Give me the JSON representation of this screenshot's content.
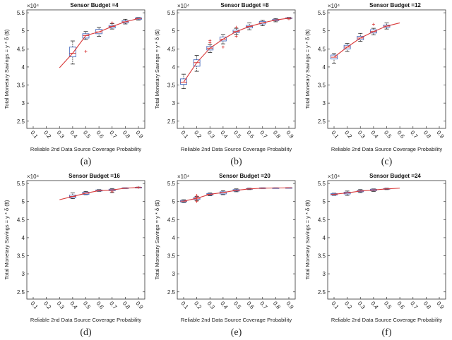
{
  "figure": {
    "colors": {
      "box": "#4a6fc0",
      "median_line": "#d93a3a",
      "whisker": "#222222",
      "outlier": "#d93a3a"
    }
  },
  "chart_data": [
    {
      "type": "box",
      "caption": "(a)",
      "title": "Sensor Budget =4",
      "xlabel": "Reliable 2nd Data Source Coverage Probability",
      "ylabel": "Total Monetary Savings = y * δ ($)",
      "y_multiplier": "×10⁴",
      "categories": [
        "0.1",
        "0.2",
        "0.3",
        "0.4",
        "0.5",
        "0.6",
        "0.7",
        "0.8",
        "0.9"
      ],
      "yticks": [
        "2.5",
        "3",
        "3.5",
        "4",
        "4.5",
        "5",
        "5.5"
      ],
      "ylim": [
        2.3,
        5.58
      ],
      "grid": false,
      "median": [
        null,
        null,
        3.98,
        4.38,
        4.87,
        4.97,
        5.12,
        5.25,
        5.34
      ],
      "q1": [
        null,
        null,
        null,
        4.28,
        4.8,
        4.92,
        5.08,
        5.22,
        5.32
      ],
      "q3": [
        null,
        null,
        null,
        4.55,
        4.92,
        5.04,
        5.15,
        5.28,
        5.36
      ],
      "whisker_low": [
        null,
        null,
        null,
        4.08,
        4.76,
        4.85,
        5.05,
        5.19,
        5.3
      ],
      "whisker_high": [
        null,
        null,
        null,
        4.72,
        4.98,
        5.1,
        5.2,
        5.32,
        5.37
      ],
      "outliers": [
        [],
        [],
        [],
        [],
        [
          4.43
        ],
        [],
        [
          5.22
        ],
        [],
        []
      ]
    },
    {
      "type": "box",
      "caption": "(b)",
      "title": "Sensor Budget =8",
      "xlabel": "Reliable 2nd Data Source Coverage Probability",
      "ylabel": "Total Monetary Savings = y * δ ($)",
      "y_multiplier": "×10⁴",
      "categories": [
        "0.1",
        "0.2",
        "0.3",
        "0.4",
        "0.5",
        "0.6",
        "0.7",
        "0.8",
        "0.9"
      ],
      "yticks": [
        "2.5",
        "3",
        "3.5",
        "4",
        "4.5",
        "5",
        "5.5"
      ],
      "ylim": [
        2.3,
        5.58
      ],
      "grid": false,
      "median": [
        3.58,
        4.12,
        4.52,
        4.77,
        4.98,
        5.12,
        5.22,
        5.3,
        5.35
      ],
      "q1": [
        3.52,
        4.02,
        4.47,
        4.72,
        4.95,
        5.08,
        5.19,
        5.28,
        5.34
      ],
      "q3": [
        3.67,
        4.2,
        4.57,
        4.83,
        5.02,
        5.15,
        5.26,
        5.32,
        5.36
      ],
      "whisker_low": [
        3.4,
        3.88,
        4.4,
        4.64,
        4.9,
        5.03,
        5.14,
        5.25,
        5.33
      ],
      "whisker_high": [
        3.8,
        4.32,
        4.62,
        4.9,
        5.07,
        5.22,
        5.29,
        5.34,
        5.37
      ],
      "outliers": [
        [],
        [],
        [
          4.67,
          4.73
        ],
        [
          4.55
        ],
        [
          4.85,
          5.1
        ],
        [],
        [],
        [],
        [
          5.33
        ]
      ]
    },
    {
      "type": "box",
      "caption": "(c)",
      "title": "Sensor Budget =12",
      "xlabel": "Reliable 2nd Data Source Coverage Probability",
      "ylabel": "Total Monetary Savings = y * δ ($)",
      "y_multiplier": "×10⁴",
      "categories": [
        "0.1",
        "0.2",
        "0.3",
        "0.4",
        "0.5",
        "0.6",
        "0.7",
        "0.8",
        "0.9"
      ],
      "yticks": [
        "2.5",
        "3",
        "3.5",
        "4",
        "4.5",
        "5",
        "5.5"
      ],
      "ylim": [
        2.3,
        5.58
      ],
      "grid": false,
      "median": [
        4.27,
        4.55,
        4.8,
        4.98,
        5.13,
        5.22,
        null,
        null,
        null
      ],
      "q1": [
        4.22,
        4.5,
        4.75,
        4.94,
        5.1,
        null,
        null,
        null,
        null
      ],
      "q3": [
        4.33,
        4.6,
        4.85,
        5.03,
        5.16,
        null,
        null,
        null,
        null
      ],
      "whisker_low": [
        4.1,
        4.43,
        4.71,
        4.89,
        5.05,
        null,
        null,
        null,
        null
      ],
      "whisker_high": [
        4.37,
        4.65,
        4.93,
        5.07,
        5.22,
        null,
        null,
        null,
        null
      ],
      "outliers": [
        [],
        [],
        [],
        [
          5.18
        ],
        [],
        [],
        [],
        [],
        []
      ]
    },
    {
      "type": "box",
      "caption": "(d)",
      "title": "Sensor Budget =16",
      "xlabel": "Reliable 2nd Data Source Coverage Probability",
      "ylabel": "Total Monetary Savings = y * δ ($)",
      "y_multiplier": "×10⁴",
      "categories": [
        "0.1",
        "0.2",
        "0.3",
        "0.4",
        "0.5",
        "0.6",
        "0.7",
        "0.8",
        "0.9"
      ],
      "yticks": [
        "2.5",
        "3",
        "3.5",
        "4",
        "4.5",
        "5",
        "5.5"
      ],
      "ylim": [
        2.3,
        5.58
      ],
      "grid": false,
      "median": [
        null,
        null,
        5.05,
        5.14,
        5.23,
        5.3,
        5.32,
        5.37,
        5.39
      ],
      "q1": [
        null,
        null,
        null,
        5.1,
        5.2,
        5.29,
        5.3,
        5.36,
        5.385
      ],
      "q3": [
        null,
        null,
        null,
        5.18,
        5.26,
        5.32,
        5.34,
        5.38,
        5.395
      ],
      "whisker_low": [
        null,
        null,
        null,
        5.08,
        5.19,
        5.28,
        5.25,
        5.36,
        5.38
      ],
      "whisker_high": [
        null,
        null,
        null,
        5.24,
        5.28,
        5.33,
        5.36,
        5.38,
        5.4
      ],
      "outliers": [
        [],
        [],
        [],
        [],
        [],
        [],
        [
          5.27
        ],
        [],
        [
          5.39
        ]
      ]
    },
    {
      "type": "box",
      "caption": "(e)",
      "title": "Sensor Budget =20",
      "xlabel": "Reliable 2nd Data Source Coverage Probability",
      "ylabel": "Total Monetary Savings = y * δ ($)",
      "y_multiplier": "×10⁴",
      "categories": [
        "0.1",
        "0.2",
        "0.3",
        "0.4",
        "0.5",
        "0.6",
        "0.7",
        "0.8",
        "0.9"
      ],
      "yticks": [
        "2.5",
        "3",
        "3.5",
        "4",
        "4.5",
        "5",
        "5.5"
      ],
      "ylim": [
        2.3,
        5.58
      ],
      "grid": false,
      "median": [
        5.01,
        5.09,
        5.2,
        5.25,
        5.31,
        5.35,
        5.37,
        5.375,
        5.38
      ],
      "q1": [
        4.99,
        5.06,
        5.18,
        5.21,
        5.29,
        5.34,
        5.36,
        5.37,
        5.375
      ],
      "q3": [
        5.03,
        5.11,
        5.22,
        5.27,
        5.33,
        5.36,
        5.38,
        5.38,
        5.385
      ],
      "whisker_low": [
        4.97,
        5.02,
        5.16,
        5.19,
        5.27,
        5.33,
        5.36,
        5.37,
        5.375
      ],
      "whisker_high": [
        5.05,
        5.14,
        5.24,
        5.3,
        5.35,
        5.37,
        5.38,
        5.38,
        5.385
      ],
      "outliers": [
        [],
        [
          5.0,
          5.05,
          5.13,
          5.17
        ],
        [],
        [],
        [],
        [],
        [],
        [],
        []
      ]
    },
    {
      "type": "box",
      "caption": "(f)",
      "title": "Sensor Budget =24",
      "xlabel": "Reliable 2nd Data Source Coverage Probability",
      "ylabel": "Total Monetary Savings = y * δ ($)",
      "y_multiplier": "×10⁴",
      "categories": [
        "0.1",
        "0.2",
        "0.3",
        "0.4",
        "0.5",
        "0.6",
        "0.7",
        "0.8",
        "0.9"
      ],
      "yticks": [
        "2.5",
        "3",
        "3.5",
        "4",
        "4.5",
        "5",
        "5.5"
      ],
      "ylim": [
        2.3,
        5.58
      ],
      "grid": false,
      "median": [
        5.2,
        5.24,
        5.29,
        5.32,
        5.35,
        5.37,
        null,
        null,
        null
      ],
      "q1": [
        5.18,
        5.21,
        5.27,
        5.3,
        5.34,
        null,
        null,
        null,
        null
      ],
      "q3": [
        5.22,
        5.26,
        5.31,
        5.34,
        5.36,
        null,
        null,
        null,
        null
      ],
      "whisker_low": [
        5.17,
        5.17,
        5.25,
        5.28,
        5.33,
        null,
        null,
        null,
        null
      ],
      "whisker_high": [
        5.23,
        5.29,
        5.33,
        5.35,
        5.37,
        null,
        null,
        null,
        null
      ],
      "outliers": [
        [],
        [],
        [],
        [],
        [],
        [],
        [],
        [],
        []
      ]
    }
  ]
}
